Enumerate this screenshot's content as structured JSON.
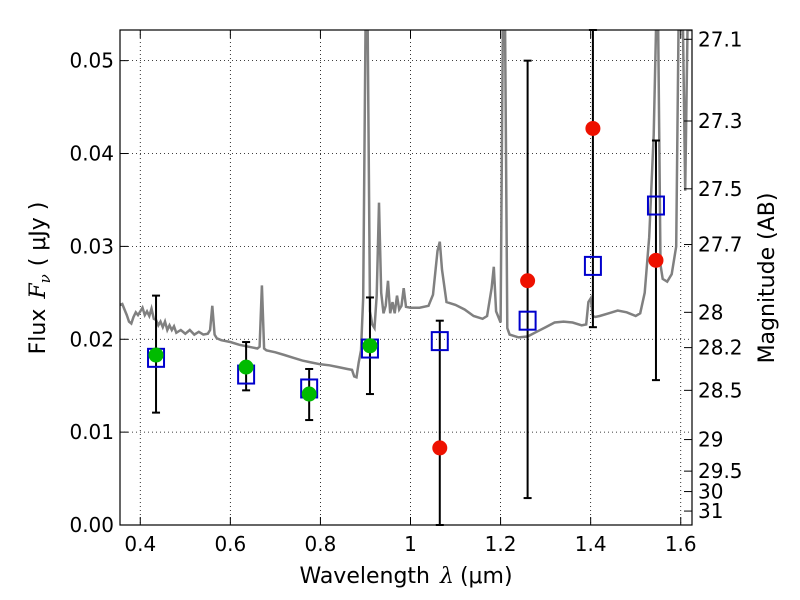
{
  "chart_data": {
    "type": "scatter",
    "title": "",
    "xlabel": "Wavelength",
    "xlabel_symbol": "λ",
    "xlabel_unit": "(μm)",
    "ylabel": "Flux",
    "ylabel_symbol": "F",
    "ylabel_sub": "ν",
    "ylabel_unit": "( μJy )",
    "y2label": "Magnitude (AB)",
    "xlim": [
      0.355,
      1.625
    ],
    "ylim": [
      0.0,
      0.0533
    ],
    "grid": true,
    "grid_style": "dotted",
    "x_ticks": [
      0.4,
      0.6,
      0.8,
      1.0,
      1.2,
      1.4,
      1.6
    ],
    "x_tick_labels": [
      "0.4",
      "0.6",
      "0.8",
      "1",
      "1.2",
      "1.4",
      "1.6"
    ],
    "y_ticks": [
      0.0,
      0.01,
      0.02,
      0.03,
      0.04,
      0.05
    ],
    "y_tick_labels": [
      "0.00",
      "0.01",
      "0.02",
      "0.03",
      "0.04",
      "0.05"
    ],
    "y2_ticks": [
      {
        "label": "27.1",
        "flux": 0.0523
      },
      {
        "label": "27.3",
        "flux": 0.0435
      },
      {
        "label": "27.5",
        "flux": 0.0362
      },
      {
        "label": "27.7",
        "flux": 0.0302
      },
      {
        "label": "28",
        "flux": 0.0229
      },
      {
        "label": "28.2",
        "flux": 0.0191
      },
      {
        "label": "28.5",
        "flux": 0.0145
      },
      {
        "label": "29",
        "flux": 0.0092
      },
      {
        "label": "29.5",
        "flux": 0.0058
      },
      {
        "label": "30",
        "flux": 0.0036
      },
      {
        "label": "31",
        "flux": 0.0015
      }
    ],
    "colors": {
      "model": "#808080",
      "squares": "#0000cc",
      "green": "#00bb00",
      "red": "#ee1100",
      "errorbar": "#000000"
    },
    "series": [
      {
        "kind": "model-spectrum",
        "points": [
          [
            0.355,
            0.0237
          ],
          [
            0.36,
            0.0238
          ],
          [
            0.365,
            0.0232
          ],
          [
            0.37,
            0.0226
          ],
          [
            0.375,
            0.0219
          ],
          [
            0.38,
            0.0217
          ],
          [
            0.385,
            0.0224
          ],
          [
            0.39,
            0.0229
          ],
          [
            0.395,
            0.0226
          ],
          [
            0.4,
            0.023
          ],
          [
            0.405,
            0.0234
          ],
          [
            0.41,
            0.0226
          ],
          [
            0.415,
            0.023
          ],
          [
            0.42,
            0.0225
          ],
          [
            0.425,
            0.0233
          ],
          [
            0.43,
            0.0222
          ],
          [
            0.435,
            0.0221
          ],
          [
            0.44,
            0.0215
          ],
          [
            0.445,
            0.0219
          ],
          [
            0.45,
            0.0213
          ],
          [
            0.455,
            0.0219
          ],
          [
            0.46,
            0.021
          ],
          [
            0.465,
            0.0215
          ],
          [
            0.47,
            0.021
          ],
          [
            0.475,
            0.0214
          ],
          [
            0.48,
            0.0207
          ],
          [
            0.49,
            0.021
          ],
          [
            0.5,
            0.0206
          ],
          [
            0.51,
            0.021
          ],
          [
            0.52,
            0.0205
          ],
          [
            0.53,
            0.0208
          ],
          [
            0.54,
            0.0205
          ],
          [
            0.55,
            0.0206
          ],
          [
            0.555,
            0.021
          ],
          [
            0.56,
            0.0236
          ],
          [
            0.565,
            0.0205
          ],
          [
            0.57,
            0.0201
          ],
          [
            0.58,
            0.0199
          ],
          [
            0.6,
            0.0197
          ],
          [
            0.62,
            0.0194
          ],
          [
            0.64,
            0.0192
          ],
          [
            0.66,
            0.019
          ],
          [
            0.665,
            0.0192
          ],
          [
            0.67,
            0.0258
          ],
          [
            0.675,
            0.019
          ],
          [
            0.68,
            0.0188
          ],
          [
            0.7,
            0.0186
          ],
          [
            0.72,
            0.0183
          ],
          [
            0.74,
            0.018
          ],
          [
            0.76,
            0.0177
          ],
          [
            0.78,
            0.0175
          ],
          [
            0.8,
            0.0173
          ],
          [
            0.82,
            0.0172
          ],
          [
            0.84,
            0.017
          ],
          [
            0.86,
            0.0168
          ],
          [
            0.87,
            0.0167
          ],
          [
            0.875,
            0.016
          ],
          [
            0.88,
            0.0159
          ],
          [
            0.885,
            0.0175
          ],
          [
            0.89,
            0.0188
          ],
          [
            0.895,
            0.0245
          ],
          [
            0.9,
            0.0533
          ],
          [
            0.905,
            0.0533
          ],
          [
            0.91,
            0.023
          ],
          [
            0.915,
            0.0216
          ],
          [
            0.92,
            0.0212
          ],
          [
            0.925,
            0.0247
          ],
          [
            0.93,
            0.0347
          ],
          [
            0.935,
            0.025
          ],
          [
            0.94,
            0.0228
          ],
          [
            0.945,
            0.0236
          ],
          [
            0.95,
            0.0263
          ],
          [
            0.955,
            0.0228
          ],
          [
            0.96,
            0.024
          ],
          [
            0.965,
            0.0228
          ],
          [
            0.97,
            0.0247
          ],
          [
            0.975,
            0.0232
          ],
          [
            0.98,
            0.0236
          ],
          [
            0.985,
            0.0255
          ],
          [
            0.99,
            0.0235
          ],
          [
            1.0,
            0.0234
          ],
          [
            1.02,
            0.0234
          ],
          [
            1.04,
            0.0236
          ],
          [
            1.05,
            0.0248
          ],
          [
            1.06,
            0.0295
          ],
          [
            1.065,
            0.0305
          ],
          [
            1.07,
            0.0275
          ],
          [
            1.08,
            0.024
          ],
          [
            1.1,
            0.0237
          ],
          [
            1.12,
            0.0232
          ],
          [
            1.14,
            0.0225
          ],
          [
            1.16,
            0.0222
          ],
          [
            1.17,
            0.0225
          ],
          [
            1.18,
            0.0255
          ],
          [
            1.185,
            0.0278
          ],
          [
            1.19,
            0.023
          ],
          [
            1.2,
            0.0218
          ],
          [
            1.205,
            0.0533
          ],
          [
            1.21,
            0.0533
          ],
          [
            1.215,
            0.0212
          ],
          [
            1.22,
            0.0205
          ],
          [
            1.24,
            0.0202
          ],
          [
            1.26,
            0.0203
          ],
          [
            1.28,
            0.0208
          ],
          [
            1.3,
            0.0213
          ],
          [
            1.32,
            0.0218
          ],
          [
            1.34,
            0.0219
          ],
          [
            1.36,
            0.0218
          ],
          [
            1.38,
            0.0215
          ],
          [
            1.39,
            0.0216
          ],
          [
            1.395,
            0.024
          ],
          [
            1.4,
            0.0244
          ],
          [
            1.405,
            0.0225
          ],
          [
            1.41,
            0.0224
          ],
          [
            1.42,
            0.0225
          ],
          [
            1.44,
            0.0228
          ],
          [
            1.46,
            0.0231
          ],
          [
            1.48,
            0.0229
          ],
          [
            1.5,
            0.0225
          ],
          [
            1.51,
            0.0228
          ],
          [
            1.52,
            0.025
          ],
          [
            1.53,
            0.031
          ],
          [
            1.54,
            0.042
          ],
          [
            1.545,
            0.0533
          ],
          [
            1.55,
            0.0533
          ],
          [
            1.555,
            0.028
          ],
          [
            1.56,
            0.0265
          ],
          [
            1.57,
            0.0262
          ],
          [
            1.58,
            0.027
          ],
          [
            1.59,
            0.03
          ],
          [
            1.595,
            0.0533
          ],
          [
            1.6,
            0.0533
          ],
          [
            1.605,
            0.0533
          ],
          [
            1.61,
            0.036
          ],
          [
            1.615,
            0.0533
          ],
          [
            1.625,
            0.0533
          ]
        ]
      },
      {
        "kind": "model-photometry",
        "marker": "open-square",
        "x": [
          0.435,
          0.635,
          0.775,
          0.91,
          1.065,
          1.26,
          1.405,
          1.545
        ],
        "y": [
          0.018,
          0.0162,
          0.0147,
          0.019,
          0.0198,
          0.022,
          0.0279,
          0.0344
        ]
      },
      {
        "kind": "observed-photometry",
        "marker": "green-dot",
        "x": [
          0.435,
          0.635,
          0.775,
          0.91
        ],
        "y": [
          0.0183,
          0.017,
          0.0141,
          0.0193
        ],
        "yerr_low": [
          0.0121,
          0.0145,
          0.0113,
          0.0141
        ],
        "yerr_high": [
          0.0247,
          0.0197,
          0.0168,
          0.0245
        ]
      },
      {
        "kind": "observed-photometry",
        "marker": "red-dot",
        "x": [
          1.065,
          1.26,
          1.405,
          1.545
        ],
        "y": [
          0.0083,
          0.0263,
          0.0427,
          0.0285
        ],
        "yerr_low": [
          0.0,
          0.0029,
          0.0213,
          0.0156
        ],
        "yerr_high": [
          0.022,
          0.05,
          0.0533,
          0.0414
        ]
      }
    ]
  }
}
